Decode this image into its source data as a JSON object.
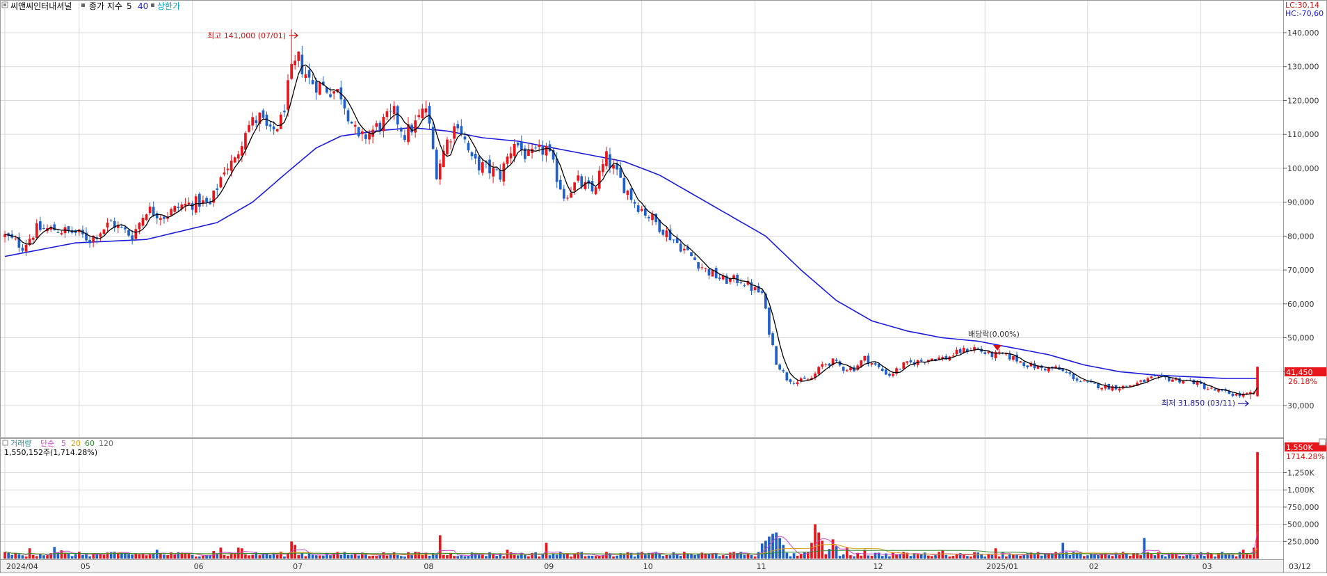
{
  "legend": {
    "stock_name": "씨앤씨인터내셔널",
    "price_label": "종가 지수",
    "ma_short": "5",
    "ma_long": "40",
    "limit_up": "상한가"
  },
  "corner": {
    "lc": "LC:30,14",
    "hc": "HC:-70,60"
  },
  "annotations": {
    "high": "최고 141,000 (07/01)",
    "low": "최저 31,850 (03/11)",
    "dividend": "배당락(0.00%)"
  },
  "current": {
    "price": "41,450",
    "change": "26.18%"
  },
  "volume_legend": {
    "title": "거래량",
    "method": "단순",
    "p5": "5",
    "p20": "20",
    "p60": "60",
    "p120": "120",
    "value_text": "1,550,152주(1,714.28%)"
  },
  "volume_current": {
    "value": "1,550K",
    "pct": "1714.28%"
  },
  "colors": {
    "up": "#e8161b",
    "down": "#1f5fc8",
    "ma5": "#000000",
    "ma40": "#1a1adb",
    "vol_ma5": "#cc44cc",
    "vol_ma20": "#d4a017",
    "vol_ma60": "#2e8b2e",
    "grid": "#d9d9d9"
  },
  "chart_data": {
    "type": "candlestick",
    "price_axis": {
      "min": 22000,
      "max": 148000,
      "ticks": [
        "30,000",
        "40,000",
        "50,000",
        "60,000",
        "70,000",
        "80,000",
        "90,000",
        "100,000",
        "110,000",
        "120,000",
        "130,000",
        "140,000"
      ],
      "tick_values": [
        30000,
        40000,
        50000,
        60000,
        70000,
        80000,
        90000,
        100000,
        110000,
        120000,
        130000,
        140000
      ]
    },
    "volume_axis": {
      "max": 1650000,
      "ticks": [
        "250,000",
        "500,000",
        "750,000",
        "1,000K",
        "1,250K"
      ],
      "tick_values": [
        250000,
        500000,
        750000,
        1000000,
        1250000
      ]
    },
    "x_labels": [
      {
        "label": "2024/04",
        "index": 0
      },
      {
        "label": "05",
        "index": 21
      },
      {
        "label": "06",
        "index": 53
      },
      {
        "label": "07",
        "index": 81
      },
      {
        "label": "08",
        "index": 118
      },
      {
        "label": "09",
        "index": 152
      },
      {
        "label": "10",
        "index": 180
      },
      {
        "label": "11",
        "index": 212
      },
      {
        "label": "12",
        "index": 245
      },
      {
        "label": "2025/01",
        "index": 277
      },
      {
        "label": "02",
        "index": 306
      },
      {
        "label": "03",
        "index": 338
      },
      {
        "label": "03/12",
        "index": 354
      }
    ],
    "anchors": [
      [
        0,
        80000
      ],
      [
        5,
        77000
      ],
      [
        9,
        82000
      ],
      [
        14,
        82000
      ],
      [
        20,
        81000
      ],
      [
        24,
        79000
      ],
      [
        30,
        84000
      ],
      [
        36,
        80000
      ],
      [
        40,
        88000
      ],
      [
        45,
        86000
      ],
      [
        50,
        89000
      ],
      [
        55,
        90000
      ],
      [
        58,
        89000
      ],
      [
        62,
        100000
      ],
      [
        65,
        102000
      ],
      [
        68,
        112000
      ],
      [
        72,
        115000
      ],
      [
        75,
        110000
      ],
      [
        78,
        114000
      ],
      [
        81,
        128000
      ],
      [
        83,
        132000
      ],
      [
        86,
        126000
      ],
      [
        90,
        124000
      ],
      [
        95,
        122000
      ],
      [
        100,
        108000
      ],
      [
        105,
        112000
      ],
      [
        110,
        116000
      ],
      [
        113,
        110000
      ],
      [
        116,
        113000
      ],
      [
        119,
        118000
      ],
      [
        122,
        99000
      ],
      [
        125,
        108000
      ],
      [
        128,
        114000
      ],
      [
        132,
        102000
      ],
      [
        136,
        100000
      ],
      [
        140,
        98000
      ],
      [
        144,
        108000
      ],
      [
        148,
        103000
      ],
      [
        153,
        106000
      ],
      [
        158,
        92000
      ],
      [
        162,
        96000
      ],
      [
        166,
        93000
      ],
      [
        170,
        103000
      ],
      [
        173,
        98000
      ],
      [
        178,
        90000
      ],
      [
        183,
        85000
      ],
      [
        188,
        80000
      ],
      [
        193,
        75000
      ],
      [
        198,
        70000
      ],
      [
        203,
        67000
      ],
      [
        208,
        67000
      ],
      [
        212,
        64000
      ],
      [
        214,
        63000
      ],
      [
        216,
        52000
      ],
      [
        218,
        43000
      ],
      [
        221,
        38000
      ],
      [
        224,
        37000
      ],
      [
        228,
        38000
      ],
      [
        231,
        42000
      ],
      [
        234,
        43000
      ],
      [
        237,
        41000
      ],
      [
        240,
        41000
      ],
      [
        243,
        44000
      ],
      [
        247,
        41000
      ],
      [
        250,
        39000
      ],
      [
        254,
        42000
      ],
      [
        258,
        43000
      ],
      [
        262,
        44000
      ],
      [
        266,
        44000
      ],
      [
        270,
        46000
      ],
      [
        274,
        47000
      ],
      [
        278,
        45000
      ],
      [
        282,
        45000
      ],
      [
        285,
        44000
      ],
      [
        289,
        42000
      ],
      [
        293,
        41000
      ],
      [
        297,
        41000
      ],
      [
        301,
        39000
      ],
      [
        304,
        37000
      ],
      [
        308,
        36000
      ],
      [
        312,
        35500
      ],
      [
        316,
        35500
      ],
      [
        320,
        36500
      ],
      [
        324,
        38000
      ],
      [
        328,
        38000
      ],
      [
        332,
        37500
      ],
      [
        336,
        37000
      ],
      [
        340,
        35000
      ],
      [
        344,
        34000
      ],
      [
        349,
        33000
      ],
      [
        353,
        33500
      ],
      [
        354,
        41450
      ]
    ],
    "ma40_anchors": [
      [
        0,
        74000
      ],
      [
        20,
        78000
      ],
      [
        40,
        79000
      ],
      [
        60,
        84000
      ],
      [
        70,
        90000
      ],
      [
        80,
        99000
      ],
      [
        88,
        106000
      ],
      [
        95,
        109500
      ],
      [
        105,
        111000
      ],
      [
        115,
        112000
      ],
      [
        125,
        111000
      ],
      [
        135,
        109000
      ],
      [
        145,
        108000
      ],
      [
        155,
        106000
      ],
      [
        165,
        104000
      ],
      [
        175,
        102000
      ],
      [
        185,
        98000
      ],
      [
        195,
        92000
      ],
      [
        205,
        86000
      ],
      [
        215,
        80000
      ],
      [
        225,
        70000
      ],
      [
        235,
        61000
      ],
      [
        245,
        55000
      ],
      [
        255,
        52000
      ],
      [
        265,
        50000
      ],
      [
        275,
        49000
      ],
      [
        285,
        47000
      ],
      [
        295,
        45000
      ],
      [
        305,
        42000
      ],
      [
        315,
        40000
      ],
      [
        325,
        39000
      ],
      [
        335,
        38500
      ],
      [
        345,
        38000
      ],
      [
        354,
        38000
      ]
    ],
    "volume_spikes": [
      [
        7,
        150000
      ],
      [
        14,
        170000
      ],
      [
        16,
        120000
      ],
      [
        43,
        130000
      ],
      [
        59,
        110000
      ],
      [
        61,
        160000
      ],
      [
        66,
        160000
      ],
      [
        67,
        150000
      ],
      [
        81,
        250000
      ],
      [
        82,
        200000
      ],
      [
        123,
        340000
      ],
      [
        142,
        130000
      ],
      [
        153,
        230000
      ],
      [
        214,
        220000
      ],
      [
        215,
        260000
      ],
      [
        216,
        320000
      ],
      [
        217,
        360000
      ],
      [
        218,
        380000
      ],
      [
        219,
        300000
      ],
      [
        220,
        200000
      ],
      [
        228,
        230000
      ],
      [
        229,
        500000
      ],
      [
        230,
        380000
      ],
      [
        231,
        260000
      ],
      [
        233,
        140000
      ],
      [
        234,
        280000
      ],
      [
        235,
        180000
      ],
      [
        238,
        160000
      ],
      [
        243,
        130000
      ],
      [
        265,
        120000
      ],
      [
        280,
        150000
      ],
      [
        299,
        230000
      ],
      [
        322,
        300000
      ],
      [
        350,
        130000
      ],
      [
        353,
        160000
      ],
      [
        354,
        1550152
      ]
    ],
    "total_bars": 355,
    "high": {
      "value": 141000,
      "date": "07/01",
      "index": 81
    },
    "low": {
      "value": 31850,
      "date": "03/11",
      "index": 352
    },
    "dividend_index": 276,
    "last": {
      "value": 41450,
      "volume": 1550152
    }
  }
}
